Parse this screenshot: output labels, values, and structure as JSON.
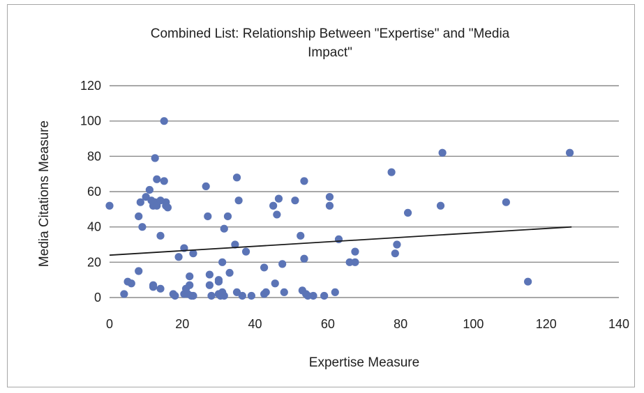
{
  "chart_data": {
    "type": "scatter",
    "title_lines": [
      "Combined List:  Relationship Between \"Expertise\" and \"Media",
      "Impact\""
    ],
    "xlabel": "Expertise Measure",
    "ylabel": "Media Citations Measure",
    "xlim": [
      0,
      140
    ],
    "ylim": [
      0,
      120
    ],
    "xticks": [
      0,
      20,
      40,
      60,
      80,
      100,
      120,
      140
    ],
    "yticks": [
      0,
      20,
      40,
      60,
      80,
      100,
      120
    ],
    "grid": "horizontal",
    "legend": "none",
    "point_color": "#5b74b6",
    "trendline": {
      "x": [
        0,
        127
      ],
      "y": [
        24,
        40
      ]
    },
    "points": [
      [
        0,
        52
      ],
      [
        4,
        2
      ],
      [
        5,
        9
      ],
      [
        6,
        8
      ],
      [
        8,
        15
      ],
      [
        8,
        46
      ],
      [
        8.5,
        54
      ],
      [
        9,
        40
      ],
      [
        10,
        57
      ],
      [
        11,
        61
      ],
      [
        11.5,
        55
      ],
      [
        12,
        6
      ],
      [
        12,
        7
      ],
      [
        12,
        52
      ],
      [
        12.5,
        79
      ],
      [
        12.5,
        54
      ],
      [
        13,
        52
      ],
      [
        13,
        67
      ],
      [
        14,
        5
      ],
      [
        14,
        55
      ],
      [
        14,
        35
      ],
      [
        15,
        100
      ],
      [
        15,
        66
      ],
      [
        15.5,
        54
      ],
      [
        15.5,
        52
      ],
      [
        16,
        51
      ],
      [
        17.5,
        2
      ],
      [
        18,
        1
      ],
      [
        19,
        23
      ],
      [
        20.5,
        28
      ],
      [
        20.5,
        2
      ],
      [
        21,
        5
      ],
      [
        21.5,
        2
      ],
      [
        22,
        7
      ],
      [
        22,
        12
      ],
      [
        22.5,
        1
      ],
      [
        23,
        25
      ],
      [
        23,
        1
      ],
      [
        26.5,
        63
      ],
      [
        27,
        46
      ],
      [
        27.5,
        13
      ],
      [
        27.5,
        7
      ],
      [
        28,
        1
      ],
      [
        30,
        10
      ],
      [
        30,
        9
      ],
      [
        30,
        2
      ],
      [
        30.5,
        1
      ],
      [
        31,
        20
      ],
      [
        31,
        3
      ],
      [
        31.5,
        39
      ],
      [
        31.5,
        1
      ],
      [
        32.5,
        46
      ],
      [
        33,
        14
      ],
      [
        34.5,
        30
      ],
      [
        35,
        68
      ],
      [
        35,
        3
      ],
      [
        35.5,
        55
      ],
      [
        36.5,
        1
      ],
      [
        37.5,
        26
      ],
      [
        39,
        1
      ],
      [
        42.5,
        17
      ],
      [
        42.5,
        2
      ],
      [
        43,
        3
      ],
      [
        45,
        52
      ],
      [
        45.5,
        8
      ],
      [
        46,
        47
      ],
      [
        46.5,
        56
      ],
      [
        47.5,
        19
      ],
      [
        48,
        3
      ],
      [
        51,
        55
      ],
      [
        52.5,
        35
      ],
      [
        53,
        4
      ],
      [
        53.5,
        22
      ],
      [
        53.5,
        66
      ],
      [
        54,
        2
      ],
      [
        54.5,
        1
      ],
      [
        56,
        1
      ],
      [
        59,
        1
      ],
      [
        60.5,
        57
      ],
      [
        60.5,
        52
      ],
      [
        62,
        3
      ],
      [
        63,
        33
      ],
      [
        66,
        20
      ],
      [
        67.5,
        26
      ],
      [
        67.5,
        20
      ],
      [
        77.5,
        71
      ],
      [
        78.5,
        25
      ],
      [
        79,
        30
      ],
      [
        82,
        48
      ],
      [
        91,
        52
      ],
      [
        91.5,
        82
      ],
      [
        109,
        54
      ],
      [
        115,
        9
      ],
      [
        126.5,
        82
      ]
    ]
  }
}
